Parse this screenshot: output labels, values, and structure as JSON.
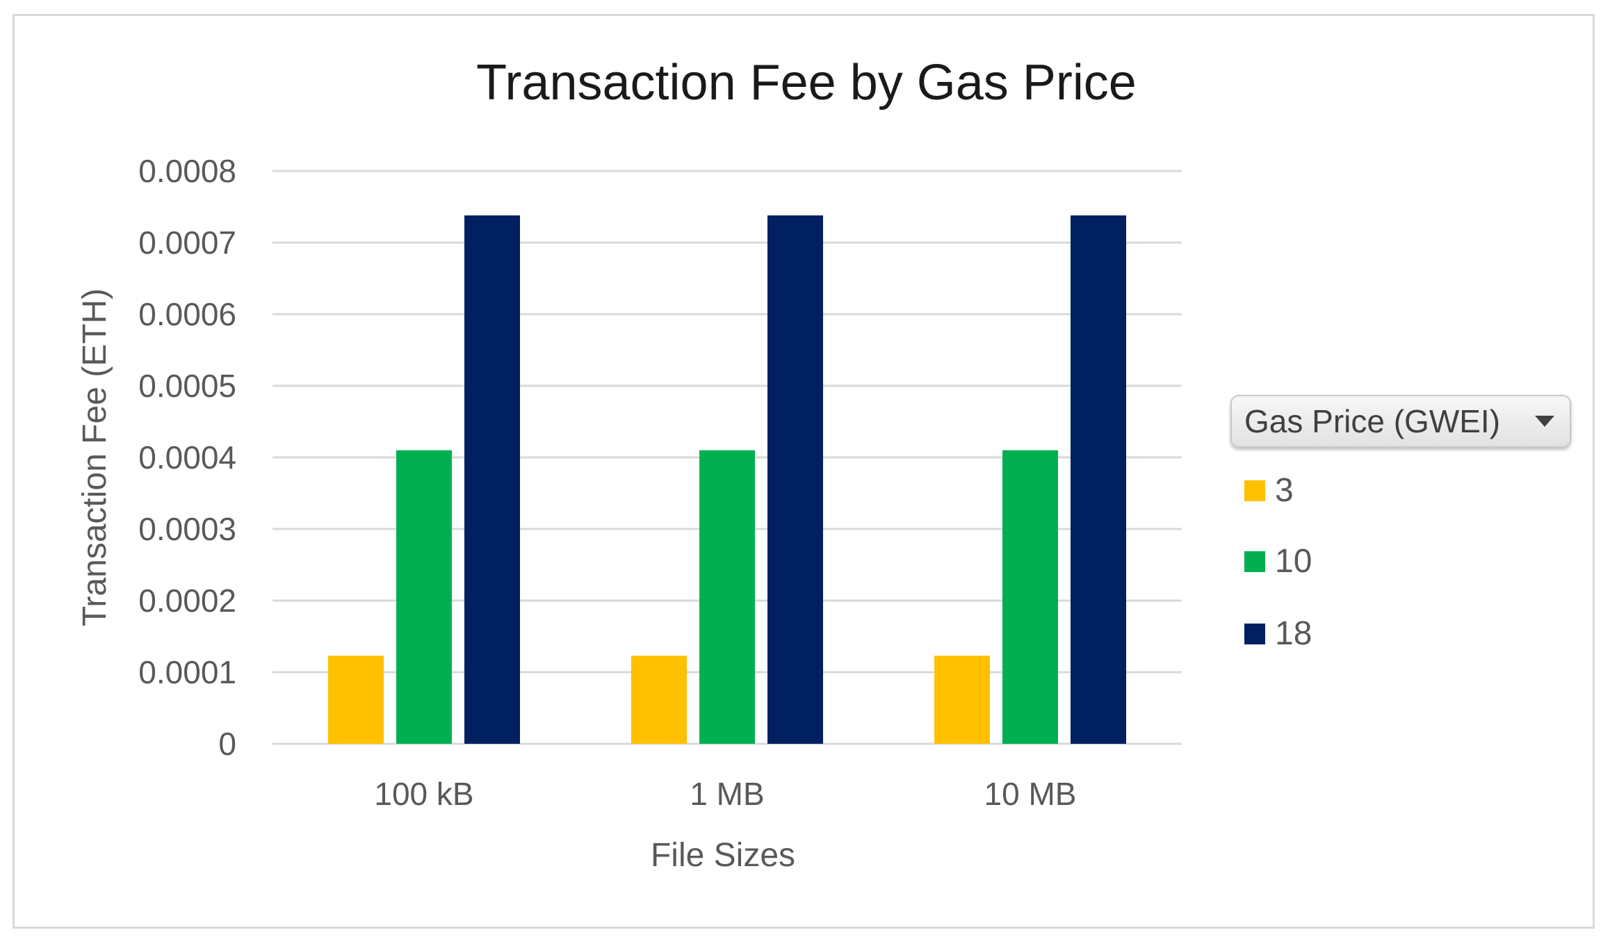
{
  "chart_data": {
    "type": "bar",
    "title": "Transaction Fee by Gas Price",
    "xlabel": "File Sizes",
    "ylabel": "Transaction Fee (ETH)",
    "ylim": [
      0,
      0.0008
    ],
    "yticks": [
      "0",
      "0.0001",
      "0.0002",
      "0.0003",
      "0.0004",
      "0.0005",
      "0.0006",
      "0.0007",
      "0.0008"
    ],
    "grid": true,
    "legend_placement": "right",
    "legend_title": "Gas Price (GWEI)",
    "categories": [
      "100 kB",
      "1 MB",
      "10 MB"
    ],
    "series": [
      {
        "name": "3",
        "color": "#FFC000",
        "values": [
          0.000123,
          0.000123,
          0.000123
        ]
      },
      {
        "name": "10",
        "color": "#00B050",
        "values": [
          0.00041,
          0.00041,
          0.00041
        ]
      },
      {
        "name": "18",
        "color": "#002060",
        "values": [
          0.000738,
          0.000738,
          0.000738
        ]
      }
    ]
  }
}
